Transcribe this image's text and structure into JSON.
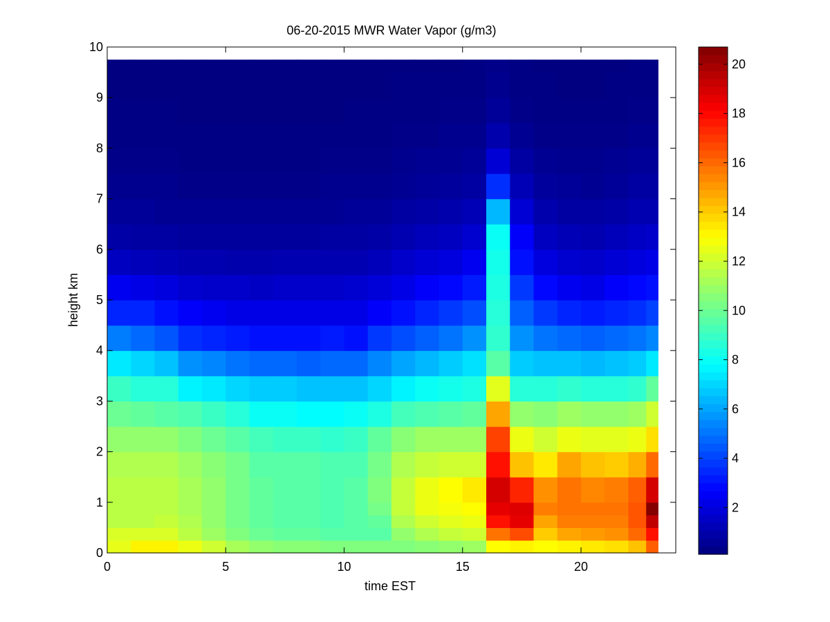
{
  "chart_data": {
    "type": "heatmap",
    "title": "06-20-2015 MWR Water Vapor (g/m3)",
    "xlabel": "time EST",
    "ylabel": "height km",
    "xlim": [
      0,
      24
    ],
    "ylim": [
      0,
      10
    ],
    "xticks": [
      0,
      5,
      10,
      15,
      20
    ],
    "yticks": [
      0,
      1,
      2,
      3,
      4,
      5,
      6,
      7,
      8,
      9,
      10
    ],
    "colorbar": {
      "colormap": "jet",
      "range": [
        0.1,
        20.7
      ],
      "ticks": [
        2,
        4,
        6,
        8,
        10,
        12,
        14,
        16,
        18,
        20
      ]
    },
    "x": [
      0.5,
      1.5,
      2.5,
      3.5,
      4.5,
      5.5,
      6.5,
      7.5,
      8.5,
      9.5,
      10.5,
      11.5,
      12.5,
      13.5,
      14.5,
      15.5,
      16.5,
      17.5,
      18.5,
      19.5,
      20.5,
      21.5,
      22.5,
      23.0
    ],
    "y": [
      0,
      0.25,
      0.5,
      0.75,
      1,
      1.5,
      2,
      2.5,
      3,
      3.5,
      4,
      4.5,
      5,
      5.5,
      6,
      6.5,
      7,
      7.5,
      8,
      8.5,
      9,
      9.5
    ],
    "z": [
      [
        12.5,
        12.2,
        11.6,
        11.6,
        11.6,
        11.4,
        10.8,
        10.0,
        9.0,
        7.4,
        5.2,
        3.4,
        2.4,
        1.4,
        0.9,
        0.6,
        0.4,
        0.3,
        0.2,
        0.2,
        0.1,
        0.1
      ],
      [
        13.2,
        12.2,
        11.6,
        11.6,
        11.6,
        11.4,
        10.8,
        9.8,
        8.6,
        7.0,
        4.8,
        3.4,
        2.2,
        1.3,
        0.8,
        0.6,
        0.4,
        0.3,
        0.2,
        0.2,
        0.1,
        0.1
      ],
      [
        13.2,
        12.2,
        11.8,
        11.6,
        11.6,
        11.4,
        10.8,
        9.6,
        8.6,
        6.6,
        4.4,
        3.0,
        2.0,
        1.2,
        0.8,
        0.5,
        0.4,
        0.3,
        0.2,
        0.2,
        0.1,
        0.1
      ],
      [
        12.6,
        11.6,
        11.4,
        11.2,
        11.2,
        11.0,
        10.4,
        9.4,
        7.6,
        5.6,
        3.6,
        2.6,
        1.7,
        1.1,
        0.7,
        0.5,
        0.3,
        0.2,
        0.2,
        0.1,
        0.1,
        0.1
      ],
      [
        12.0,
        11.0,
        10.8,
        10.8,
        10.8,
        10.6,
        10.0,
        9.0,
        7.4,
        5.4,
        3.4,
        2.4,
        1.6,
        1.1,
        0.7,
        0.5,
        0.3,
        0.2,
        0.2,
        0.1,
        0.1,
        0.1
      ],
      [
        11.2,
        10.4,
        10.2,
        10.2,
        10.2,
        10.2,
        9.6,
        8.6,
        7.0,
        5.0,
        3.2,
        2.2,
        1.6,
        1.0,
        0.7,
        0.5,
        0.3,
        0.2,
        0.2,
        0.1,
        0.1,
        0.1
      ],
      [
        10.8,
        10.0,
        9.8,
        9.8,
        9.8,
        9.6,
        9.2,
        8.0,
        6.8,
        4.8,
        3.0,
        2.2,
        1.5,
        1.0,
        0.7,
        0.5,
        0.3,
        0.2,
        0.2,
        0.1,
        0.1,
        0.1
      ],
      [
        10.6,
        9.8,
        9.6,
        9.6,
        9.6,
        9.6,
        9.0,
        8.0,
        6.8,
        4.8,
        3.0,
        2.2,
        1.6,
        1.1,
        0.7,
        0.5,
        0.3,
        0.2,
        0.2,
        0.1,
        0.1,
        0.1
      ],
      [
        10.6,
        9.8,
        9.6,
        9.6,
        9.6,
        9.6,
        9.0,
        7.8,
        6.6,
        4.6,
        3.0,
        2.2,
        1.6,
        1.1,
        0.7,
        0.5,
        0.3,
        0.2,
        0.2,
        0.1,
        0.1,
        0.1
      ],
      [
        10.4,
        9.6,
        9.4,
        9.4,
        9.4,
        9.4,
        8.8,
        7.8,
        6.6,
        4.8,
        3.2,
        2.2,
        1.6,
        1.1,
        0.8,
        0.5,
        0.4,
        0.3,
        0.2,
        0.1,
        0.1,
        0.1
      ],
      [
        10.4,
        9.6,
        9.6,
        9.6,
        9.6,
        9.4,
        9.0,
        8.0,
        6.6,
        4.8,
        3.0,
        2.2,
        1.7,
        1.1,
        0.8,
        0.6,
        0.4,
        0.3,
        0.2,
        0.2,
        0.1,
        0.1
      ],
      [
        10.4,
        9.6,
        9.8,
        10.2,
        10.4,
        10.2,
        9.8,
        8.4,
        7.0,
        5.4,
        3.8,
        2.6,
        1.9,
        1.3,
        0.9,
        0.6,
        0.4,
        0.3,
        0.2,
        0.2,
        0.1,
        0.1
      ],
      [
        10.4,
        10.8,
        11.4,
        11.8,
        11.8,
        11.4,
        10.6,
        9.2,
        7.6,
        6.0,
        4.2,
        3.0,
        2.2,
        1.6,
        1.1,
        0.8,
        0.5,
        0.4,
        0.3,
        0.2,
        0.2,
        0.1
      ],
      [
        10.6,
        11.4,
        12.0,
        12.6,
        12.6,
        11.8,
        11.0,
        9.4,
        8.0,
        6.4,
        4.6,
        3.4,
        2.6,
        1.8,
        1.3,
        0.9,
        0.6,
        0.5,
        0.3,
        0.2,
        0.2,
        0.1
      ],
      [
        10.8,
        11.8,
        12.4,
        12.8,
        13.0,
        12.0,
        11.0,
        9.6,
        8.2,
        6.8,
        5.0,
        3.8,
        2.8,
        2.0,
        1.4,
        1.0,
        0.7,
        0.5,
        0.4,
        0.3,
        0.2,
        0.1
      ],
      [
        11.0,
        12.0,
        12.6,
        13.0,
        13.4,
        12.0,
        11.0,
        9.8,
        8.4,
        7.2,
        5.6,
        4.2,
        3.2,
        2.4,
        1.7,
        1.2,
        0.8,
        0.6,
        0.4,
        0.3,
        0.2,
        0.2
      ],
      [
        13.0,
        15.8,
        17.8,
        18.6,
        19.0,
        17.8,
        16.8,
        14.8,
        12.4,
        9.6,
        8.8,
        8.6,
        8.4,
        8.2,
        8.0,
        6.4,
        3.6,
        1.8,
        1.0,
        0.6,
        0.4,
        0.3
      ],
      [
        13.2,
        16.6,
        18.6,
        18.8,
        17.4,
        14.2,
        12.6,
        10.8,
        8.6,
        6.8,
        5.6,
        4.6,
        3.8,
        3.0,
        2.6,
        1.8,
        1.2,
        0.8,
        0.5,
        0.3,
        0.2,
        0.2
      ],
      [
        13.0,
        14.0,
        14.8,
        15.6,
        15.2,
        13.4,
        12.0,
        10.6,
        8.6,
        6.6,
        5.0,
        3.8,
        2.8,
        2.0,
        1.4,
        1.0,
        0.7,
        0.5,
        0.3,
        0.2,
        0.2,
        0.1
      ],
      [
        13.2,
        14.8,
        15.6,
        15.8,
        15.8,
        14.8,
        12.6,
        11.0,
        8.8,
        6.6,
        4.8,
        3.4,
        2.4,
        1.7,
        1.2,
        0.8,
        0.6,
        0.4,
        0.3,
        0.2,
        0.1,
        0.1
      ],
      [
        13.4,
        15.0,
        15.6,
        15.8,
        15.4,
        14.2,
        12.4,
        10.8,
        8.6,
        6.4,
        4.6,
        3.2,
        2.2,
        1.6,
        1.1,
        0.8,
        0.5,
        0.4,
        0.3,
        0.2,
        0.1,
        0.1
      ],
      [
        13.6,
        15.2,
        15.6,
        15.8,
        15.6,
        14.0,
        12.4,
        10.8,
        8.6,
        6.6,
        4.8,
        3.4,
        2.6,
        1.8,
        1.3,
        0.9,
        0.6,
        0.5,
        0.3,
        0.2,
        0.2,
        0.1
      ],
      [
        14.2,
        16.0,
        16.4,
        16.4,
        16.2,
        14.6,
        12.6,
        11.0,
        8.8,
        6.8,
        5.0,
        3.6,
        2.8,
        2.0,
        1.5,
        1.1,
        0.8,
        0.6,
        0.4,
        0.3,
        0.2,
        0.2
      ],
      [
        16.2,
        17.8,
        19.4,
        20.6,
        19.0,
        16.0,
        13.6,
        12.0,
        9.8,
        7.4,
        5.4,
        4.0,
        3.0,
        2.2,
        1.6,
        1.1,
        0.8,
        0.6,
        0.4,
        0.3,
        0.2,
        0.2
      ]
    ]
  }
}
